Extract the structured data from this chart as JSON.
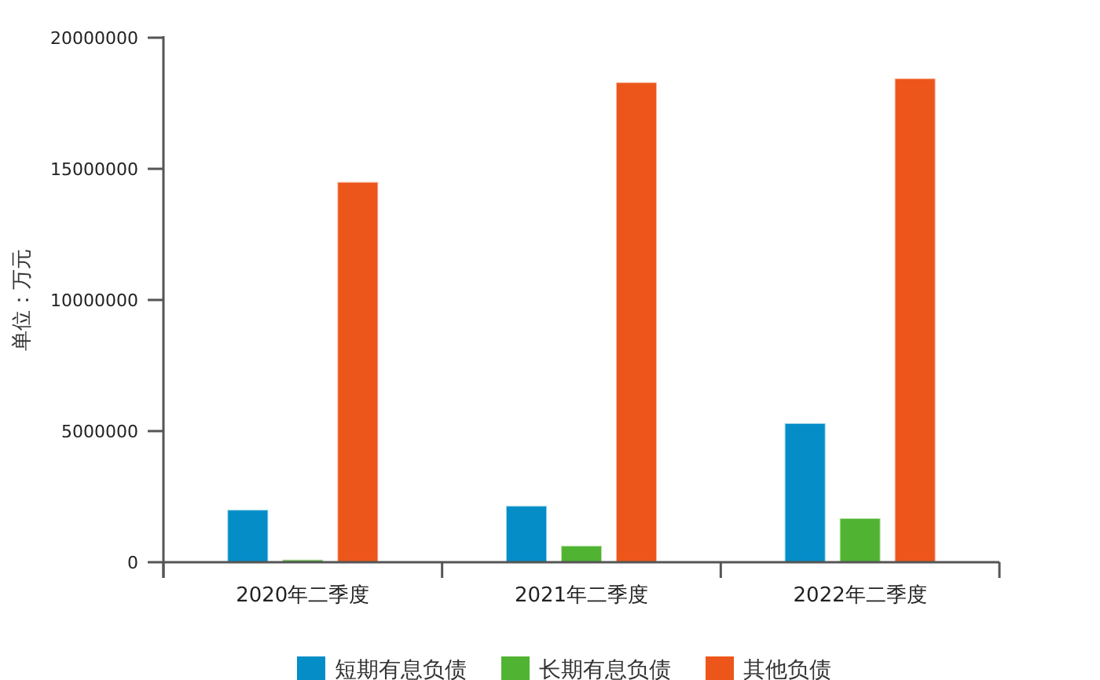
{
  "chart_data": {
    "type": "bar",
    "ylabel": "单位：万元",
    "categories": [
      "2020年二季度",
      "2021年二季度",
      "2022年二季度"
    ],
    "series": [
      {
        "name": "短期有息负债",
        "color": "#058dc7",
        "values": [
          2000000,
          2150000,
          5300000
        ]
      },
      {
        "name": "长期有息负债",
        "color": "#50b432",
        "values": [
          100000,
          630000,
          1680000
        ]
      },
      {
        "name": "其他负债",
        "color": "#ed561b",
        "values": [
          14500000,
          18300000,
          18450000
        ]
      }
    ],
    "ylim": [
      0,
      20000000
    ],
    "yticks": [
      0,
      5000000,
      10000000,
      15000000,
      20000000
    ],
    "grid": false,
    "legend": "bottom"
  }
}
